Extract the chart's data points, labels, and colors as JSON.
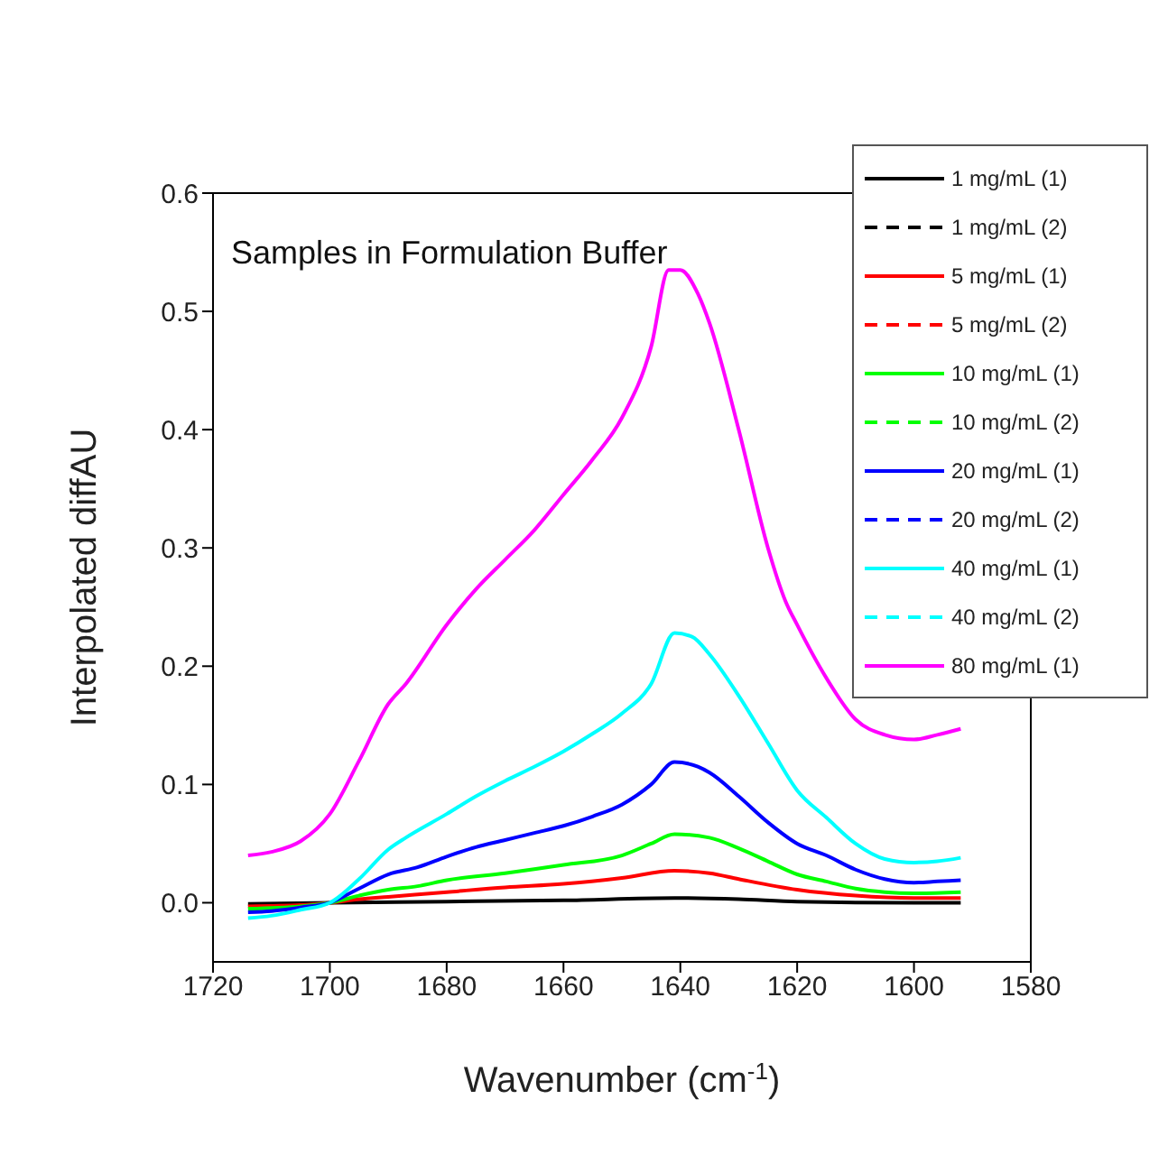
{
  "chart_data": {
    "type": "line",
    "xlabel": "Wavenumber (cm$^{-1}$)",
    "ylabel": "Interpolated diffAU",
    "annotations": [
      "Samples in Formulation Buffer"
    ],
    "xlim": [
      1720,
      1580
    ],
    "xticks": [
      1720,
      1700,
      1680,
      1660,
      1640,
      1620,
      1600,
      1580
    ],
    "ylim": [
      -0.05,
      0.6
    ],
    "yticks": [
      {
        "value": 0,
        "label": "0.0"
      },
      0.1,
      0.2,
      0.3,
      0.4,
      0.5,
      {
        "value": 0.6,
        "label": "0.6"
      }
    ],
    "legend": "top right",
    "marker": "none",
    "series": [
      {
        "name": "1 mg/mL (1)",
        "color": "#000000",
        "line_style": "solid",
        "x": [
          1714,
          1700,
          1680,
          1660,
          1641,
          1630,
          1620,
          1600,
          1592
        ],
        "values": [
          -0.001,
          0.0,
          0.001,
          0.002,
          0.004,
          0.003,
          0.001,
          0.0,
          0.0
        ]
      },
      {
        "name": "1 mg/mL (2)",
        "color": "#000000",
        "line_style": "dashed"
      },
      {
        "name": "5 mg/mL (1)",
        "color": "#ff0000",
        "line_style": "solid",
        "x": [
          1714,
          1705,
          1700,
          1695,
          1690,
          1680,
          1670,
          1660,
          1650,
          1641,
          1635,
          1630,
          1620,
          1610,
          1600,
          1592
        ],
        "values": [
          -0.003,
          -0.002,
          0.0,
          0.003,
          0.005,
          0.009,
          0.013,
          0.016,
          0.021,
          0.027,
          0.025,
          0.02,
          0.011,
          0.006,
          0.004,
          0.004
        ]
      },
      {
        "name": "5 mg/mL (2)",
        "color": "#ff0000",
        "line_style": "dashed"
      },
      {
        "name": "10 mg/mL (1)",
        "color": "#00ff00",
        "line_style": "solid",
        "x": [
          1714,
          1705,
          1700,
          1695,
          1690,
          1685,
          1680,
          1670,
          1660,
          1650,
          1645,
          1641,
          1635,
          1630,
          1625,
          1620,
          1615,
          1610,
          1605,
          1600,
          1592
        ],
        "values": [
          -0.005,
          -0.003,
          0.0,
          0.006,
          0.011,
          0.014,
          0.019,
          0.025,
          0.032,
          0.04,
          0.05,
          0.058,
          0.055,
          0.046,
          0.035,
          0.024,
          0.018,
          0.012,
          0.009,
          0.008,
          0.009
        ]
      },
      {
        "name": "10 mg/mL (2)",
        "color": "#00ff00",
        "line_style": "dashed"
      },
      {
        "name": "20 mg/mL (1)",
        "color": "#0000ff",
        "line_style": "solid",
        "x": [
          1714,
          1710,
          1705,
          1700,
          1695,
          1690,
          1685,
          1680,
          1675,
          1670,
          1665,
          1660,
          1655,
          1650,
          1645,
          1641,
          1637,
          1635,
          1630,
          1625,
          1620,
          1615,
          1610,
          1605,
          1600,
          1596,
          1592
        ],
        "values": [
          -0.008,
          -0.007,
          -0.004,
          0.0,
          0.012,
          0.024,
          0.03,
          0.039,
          0.047,
          0.053,
          0.059,
          0.065,
          0.073,
          0.083,
          0.1,
          0.119,
          0.115,
          0.11,
          0.09,
          0.068,
          0.05,
          0.04,
          0.028,
          0.02,
          0.017,
          0.018,
          0.019
        ]
      },
      {
        "name": "20 mg/mL (2)",
        "color": "#0000ff",
        "line_style": "dashed"
      },
      {
        "name": "40 mg/mL (1)",
        "color": "#00ffff",
        "line_style": "solid",
        "x": [
          1714,
          1710,
          1705,
          1700,
          1695,
          1690,
          1687,
          1680,
          1675,
          1670,
          1665,
          1660,
          1655,
          1650,
          1645,
          1641,
          1638,
          1635,
          1630,
          1625,
          1620,
          1615,
          1610,
          1605,
          1600,
          1596,
          1592
        ],
        "values": [
          -0.013,
          -0.011,
          -0.006,
          0.0,
          0.02,
          0.045,
          0.055,
          0.075,
          0.09,
          0.103,
          0.115,
          0.128,
          0.143,
          0.16,
          0.185,
          0.228,
          0.225,
          0.21,
          0.175,
          0.135,
          0.095,
          0.072,
          0.05,
          0.037,
          0.034,
          0.035,
          0.038
        ]
      },
      {
        "name": "40 mg/mL (2)",
        "color": "#00ffff",
        "line_style": "dashed"
      },
      {
        "name": "80 mg/mL (1)",
        "color": "#ff00ff",
        "line_style": "solid",
        "x": [
          1714,
          1710,
          1705,
          1700,
          1695,
          1690,
          1687,
          1680,
          1675,
          1670,
          1665,
          1660,
          1655,
          1650,
          1645,
          1642,
          1640,
          1637,
          1635,
          1630,
          1625,
          1622,
          1620,
          1615,
          1610,
          1605,
          1600,
          1596,
          1592
        ],
        "values": [
          0.04,
          0.043,
          0.052,
          0.075,
          0.12,
          0.168,
          0.185,
          0.235,
          0.265,
          0.29,
          0.315,
          0.345,
          0.375,
          0.41,
          0.47,
          0.535,
          0.535,
          0.515,
          0.49,
          0.4,
          0.3,
          0.255,
          0.235,
          0.19,
          0.155,
          0.142,
          0.138,
          0.142,
          0.147
        ]
      }
    ]
  }
}
